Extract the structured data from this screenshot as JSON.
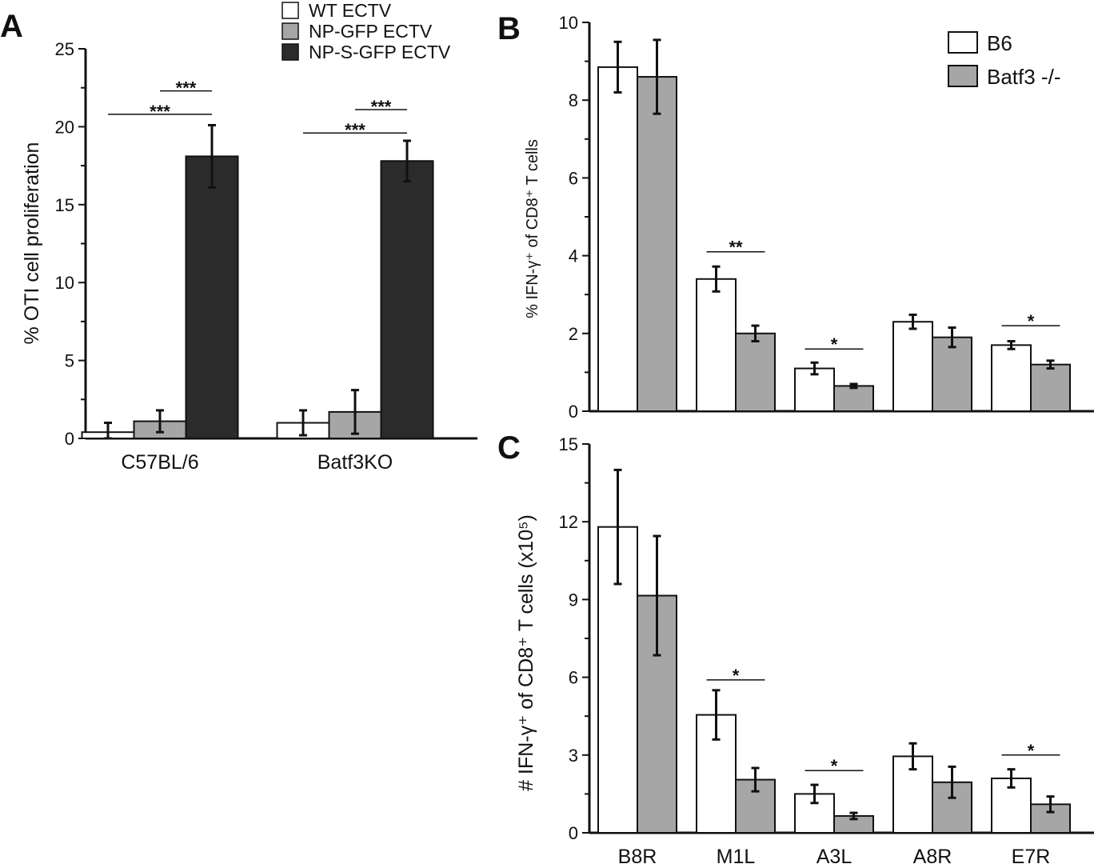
{
  "figure": {
    "panels": [
      "A",
      "B",
      "C"
    ]
  },
  "chart_data": [
    {
      "panel": "A",
      "type": "bar",
      "ylabel": "% OTI cell proliferation",
      "ylim": [
        0,
        25
      ],
      "yticks": [
        0,
        5,
        10,
        15,
        20,
        25
      ],
      "categories": [
        "C57BL/6",
        "Batf3KO"
      ],
      "series": [
        {
          "name": "WT ECTV",
          "color": "#ffffff",
          "values": [
            0.4,
            1.0
          ],
          "errors": [
            0.6,
            0.8
          ]
        },
        {
          "name": "NP-GFP ECTV",
          "color": "#a6a6a6",
          "values": [
            1.1,
            1.7
          ],
          "errors": [
            0.7,
            1.4
          ]
        },
        {
          "name": "NP-S-GFP ECTV",
          "color": "#2b2b2b",
          "values": [
            18.1,
            17.8
          ],
          "errors": [
            2.0,
            1.3
          ]
        }
      ],
      "legend": "top",
      "significance": [
        {
          "category": 0,
          "from": 1,
          "to": 2,
          "label": "***",
          "y": 22.3
        },
        {
          "category": 0,
          "from": 0,
          "to": 2,
          "label": "***",
          "y": 20.8
        },
        {
          "category": 1,
          "from": 1,
          "to": 2,
          "label": "***",
          "y": 21.1
        },
        {
          "category": 1,
          "from": 0,
          "to": 2,
          "label": "***",
          "y": 19.6
        }
      ]
    },
    {
      "panel": "B",
      "type": "bar",
      "ylabel": "% IFN-γ⁺ of CD8⁺ T cells",
      "ylim": [
        0,
        10
      ],
      "yticks": [
        0,
        2,
        4,
        6,
        8,
        10
      ],
      "categories": [
        "B8R",
        "M1L",
        "A3L",
        "A8R",
        "E7R"
      ],
      "series": [
        {
          "name": "B6",
          "color": "#ffffff",
          "values": [
            8.85,
            3.4,
            1.1,
            2.3,
            1.7
          ],
          "errors": [
            0.65,
            0.32,
            0.15,
            0.18,
            0.1
          ]
        },
        {
          "name": "Batf3 -/-",
          "color": "#a6a6a6",
          "values": [
            8.6,
            2.0,
            0.65,
            1.9,
            1.2
          ],
          "errors": [
            0.95,
            0.2,
            0.05,
            0.25,
            0.1
          ]
        }
      ],
      "legend": "top-right",
      "significance": [
        {
          "category": 1,
          "label": "**",
          "y": 4.1
        },
        {
          "category": 2,
          "label": "*",
          "y": 1.6
        },
        {
          "category": 4,
          "label": "*",
          "y": 2.2
        }
      ]
    },
    {
      "panel": "C",
      "type": "bar",
      "ylabel": "# IFN-γ⁺ of CD8⁺ T cells (x10⁵)",
      "ylim": [
        0,
        15
      ],
      "yticks": [
        0,
        3,
        6,
        9,
        12,
        15
      ],
      "categories": [
        "B8R",
        "M1L",
        "A3L",
        "A8R",
        "E7R"
      ],
      "series": [
        {
          "name": "B6",
          "color": "#ffffff",
          "values": [
            11.8,
            4.55,
            1.5,
            2.95,
            2.1
          ],
          "errors": [
            2.2,
            0.95,
            0.35,
            0.5,
            0.35
          ]
        },
        {
          "name": "Batf3 -/-",
          "color": "#a6a6a6",
          "values": [
            9.15,
            2.05,
            0.65,
            1.95,
            1.1
          ],
          "errors": [
            2.3,
            0.45,
            0.12,
            0.6,
            0.3
          ]
        }
      ],
      "significance": [
        {
          "category": 1,
          "label": "*",
          "y": 5.9
        },
        {
          "category": 2,
          "label": "*",
          "y": 2.4
        },
        {
          "category": 4,
          "label": "*",
          "y": 3.0
        }
      ]
    }
  ]
}
